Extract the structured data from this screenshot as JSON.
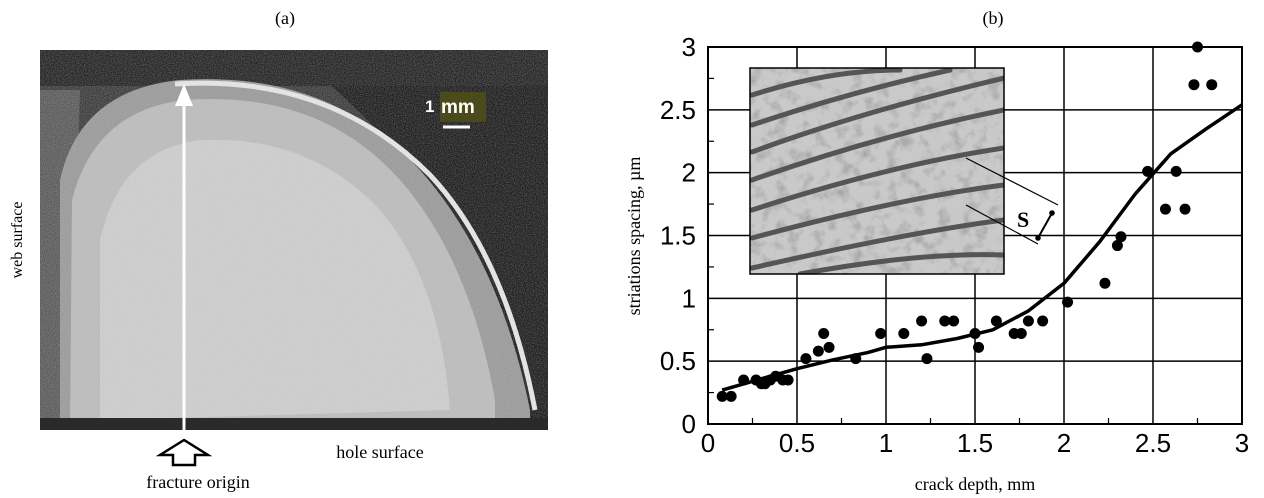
{
  "panel_a": {
    "label": "(a)",
    "scale_number": "1",
    "scale_unit": "mm",
    "left_label": "web surface",
    "bottom_label": "hole surface",
    "origin_label": "fracture origin"
  },
  "panel_b": {
    "label": "(b)",
    "inset_label": "S"
  },
  "chart_data": {
    "type": "scatter",
    "title": "",
    "xlabel": "crack depth, mm",
    "ylabel": "striations spacing, µm",
    "xlim": [
      0,
      3
    ],
    "ylim": [
      0,
      3
    ],
    "xticks": [
      "0",
      "0.5",
      "1",
      "1.5",
      "2",
      "2.5",
      "3"
    ],
    "yticks": [
      "0",
      "0.5",
      "1",
      "1.5",
      "2",
      "2.5",
      "3"
    ],
    "grid": true,
    "series": [
      {
        "kind": "points",
        "color": "#000000",
        "x": [
          0.08,
          0.13,
          0.2,
          0.27,
          0.3,
          0.32,
          0.35,
          0.38,
          0.42,
          0.45,
          0.55,
          0.62,
          0.65,
          0.68,
          0.83,
          0.97,
          1.1,
          1.2,
          1.23,
          1.33,
          1.38,
          1.5,
          1.52,
          1.62,
          1.72,
          1.76,
          1.8,
          1.88,
          2.02,
          2.23,
          2.3,
          2.32,
          2.47,
          2.57,
          2.63,
          2.68,
          2.73,
          2.75,
          2.83
        ],
        "y": [
          0.22,
          0.22,
          0.35,
          0.35,
          0.32,
          0.32,
          0.35,
          0.38,
          0.35,
          0.35,
          0.52,
          0.58,
          0.72,
          0.61,
          0.52,
          0.72,
          0.72,
          0.82,
          0.52,
          0.82,
          0.82,
          0.72,
          0.61,
          0.82,
          0.72,
          0.72,
          0.82,
          0.82,
          0.97,
          1.12,
          1.42,
          1.49,
          2.01,
          1.71,
          2.01,
          1.71,
          2.7,
          3.0,
          2.7
        ]
      },
      {
        "kind": "trend",
        "color": "#000000",
        "x": [
          0.08,
          0.3,
          0.5,
          0.7,
          0.9,
          1.0,
          1.2,
          1.4,
          1.6,
          1.8,
          2.0,
          2.2,
          2.4,
          2.6,
          2.8,
          3.0
        ],
        "y": [
          0.27,
          0.36,
          0.44,
          0.51,
          0.57,
          0.61,
          0.63,
          0.68,
          0.75,
          0.9,
          1.12,
          1.45,
          1.83,
          2.15,
          2.35,
          2.54
        ]
      }
    ]
  }
}
